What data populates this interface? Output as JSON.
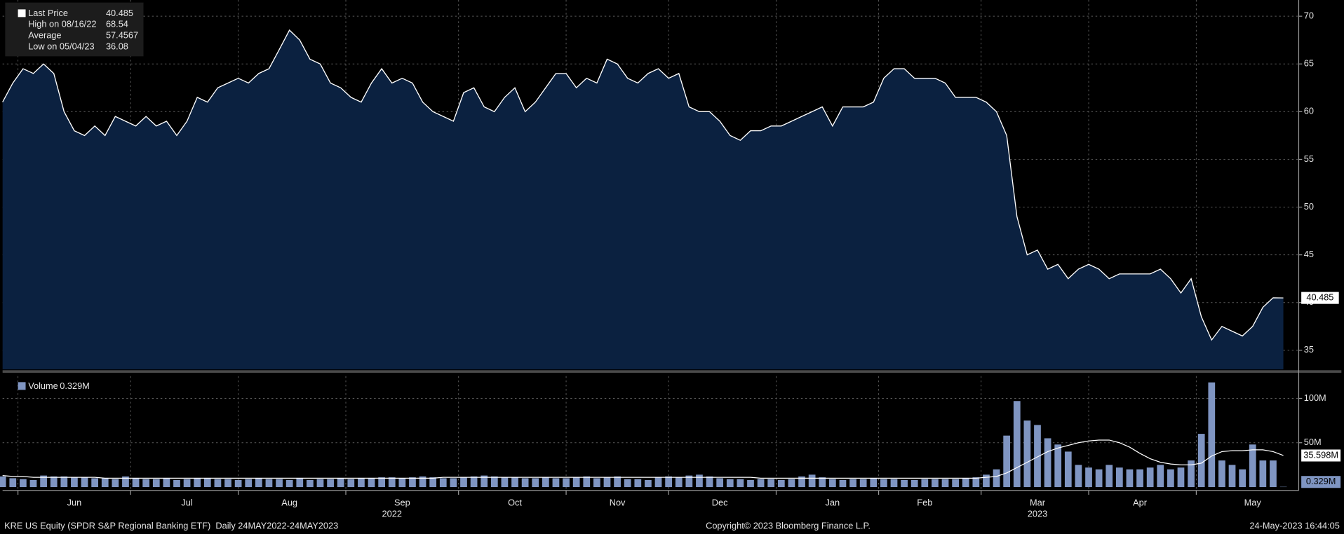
{
  "chart_data": [
    {
      "type": "area",
      "series": [
        {
          "name": "Last Price",
          "color": "#ffffff",
          "fill": "#0b2140",
          "values": [
            61,
            63,
            64.5,
            64,
            65,
            64,
            60,
            58,
            57.5,
            58.5,
            57.5,
            59.5,
            59,
            58.5,
            59.5,
            58.5,
            59,
            57.5,
            59,
            61.5,
            61,
            62.5,
            63,
            63.5,
            63,
            64,
            64.5,
            66.5,
            68.54,
            67.5,
            65.5,
            65,
            63,
            62.5,
            61.5,
            61,
            63,
            64.5,
            63,
            63.5,
            63,
            61,
            60,
            59.5,
            59,
            62,
            62.5,
            60.5,
            60,
            61.5,
            62.5,
            60,
            61,
            62.5,
            64,
            64,
            62.5,
            63.5,
            63,
            65.5,
            65,
            63.5,
            63,
            64,
            64.5,
            63.5,
            64,
            60.5,
            60,
            60,
            59,
            57.5,
            57,
            58,
            58,
            58.5,
            58.5,
            59,
            59.5,
            60,
            60.5,
            58.5,
            60.5,
            60.5,
            60.5,
            61,
            63.5,
            64.5,
            64.5,
            63.5,
            63.5,
            63.5,
            63,
            61.5,
            61.5,
            61.5,
            61,
            60,
            57.5,
            49,
            45,
            45.5,
            43.5,
            44,
            42.5,
            43.5,
            44,
            43.5,
            42.5,
            43,
            43,
            43,
            43,
            43.5,
            42.5,
            41,
            42.5,
            38.5,
            36.08,
            37.5,
            37,
            36.5,
            37.5,
            39.5,
            40.5,
            40.485
          ]
        }
      ],
      "categories": [
        null,
        null,
        null,
        null,
        null,
        null,
        null,
        "Jun",
        null,
        null,
        null,
        null,
        null,
        null,
        null,
        null,
        null,
        null,
        "Jul",
        null,
        null,
        null,
        null,
        null,
        null,
        null,
        null,
        null,
        "Aug",
        null,
        null,
        null,
        null,
        null,
        null,
        null,
        null,
        null,
        null,
        "Sep",
        null,
        null,
        null,
        null,
        null,
        null,
        null,
        null,
        null,
        null,
        "Oct",
        null,
        null,
        null,
        null,
        null,
        null,
        null,
        null,
        null,
        "Nov",
        null,
        null,
        null,
        null,
        null,
        null,
        null,
        null,
        null,
        "Dec",
        null,
        null,
        null,
        null,
        null,
        null,
        null,
        null,
        null,
        null,
        "Jan",
        null,
        null,
        null,
        null,
        null,
        null,
        null,
        null,
        "Feb",
        null,
        null,
        null,
        null,
        null,
        null,
        null,
        null,
        null,
        null,
        "Mar",
        null,
        null,
        null,
        null,
        null,
        null,
        null,
        null,
        null,
        "Apr",
        null,
        null,
        null,
        null,
        null,
        null,
        null,
        null,
        null,
        null,
        "May",
        null,
        null,
        null
      ],
      "years": [
        null,
        null,
        null,
        null,
        null,
        null,
        null,
        null,
        null,
        null,
        null,
        null,
        null,
        null,
        null,
        null,
        null,
        null,
        null,
        null,
        null,
        null,
        null,
        null,
        null,
        null,
        null,
        null,
        null,
        null,
        null,
        null,
        null,
        null,
        null,
        null,
        null,
        null,
        "2022",
        null,
        null,
        null,
        null,
        null,
        null,
        null,
        null,
        null,
        null,
        null,
        null,
        null,
        null,
        null,
        null,
        null,
        null,
        null,
        null,
        null,
        null,
        null,
        null,
        null,
        null,
        null,
        null,
        null,
        null,
        null,
        null,
        null,
        null,
        null,
        null,
        null,
        null,
        null,
        null,
        null,
        null,
        null,
        null,
        null,
        null,
        null,
        null,
        null,
        null,
        null,
        null,
        null,
        null,
        null,
        null,
        null,
        null,
        null,
        null,
        null,
        null,
        "2023",
        null,
        null,
        null,
        null,
        null,
        null,
        null,
        null,
        null,
        null,
        null,
        null,
        null,
        null,
        null,
        null,
        null,
        null,
        null,
        null,
        null,
        null,
        null,
        null
      ],
      "ylim": [
        33,
        71.7
      ],
      "yticks": [
        35,
        40,
        45,
        50,
        55,
        60,
        65,
        70
      ],
      "grid": true,
      "legend": [
        {
          "label": "High on 08/16/22",
          "value": 68.54
        },
        {
          "label": "Average",
          "value": 57.4567
        },
        {
          "label": "Low on 05/04/23",
          "value": 36.08
        }
      ]
    },
    {
      "type": "bar",
      "series": [
        {
          "name": "Volume",
          "color": "#7f95c2",
          "values": [
            12,
            10,
            9,
            8,
            13,
            12,
            12,
            11,
            11,
            10,
            10,
            9,
            12,
            10,
            9,
            9,
            10,
            8,
            9,
            10,
            10,
            9,
            9,
            8,
            9,
            10,
            9,
            9,
            8,
            10,
            8,
            9,
            9,
            10,
            9,
            10,
            10,
            11,
            11,
            10,
            11,
            12,
            11,
            10,
            10,
            11,
            12,
            13,
            12,
            11,
            11,
            10,
            10,
            11,
            10,
            10,
            11,
            12,
            10,
            11,
            12,
            9,
            9,
            8,
            11,
            12,
            11,
            13,
            14,
            12,
            10,
            9,
            9,
            8,
            9,
            9,
            8,
            9,
            12,
            14,
            11,
            9,
            8,
            9,
            9,
            10,
            9,
            9,
            8,
            8,
            9,
            9,
            9,
            9,
            10,
            11,
            14,
            20,
            58,
            97,
            75,
            70,
            55,
            48,
            40,
            25,
            22,
            20,
            25,
            22,
            20,
            20,
            22,
            25,
            20,
            22,
            30,
            60,
            118,
            30,
            25,
            20,
            48,
            30,
            30,
            0.329
          ],
          "last_label": "0.329M"
        },
        {
          "type": "line",
          "color": "#ffffff",
          "values": [
            13,
            12,
            12,
            11,
            11,
            11,
            11,
            11,
            11,
            11,
            10,
            10,
            10,
            10,
            10,
            10,
            10,
            10,
            10,
            10,
            10,
            10,
            10,
            10,
            10,
            10,
            10,
            10,
            10,
            10,
            10,
            10,
            10,
            10,
            10,
            10,
            10,
            10,
            10,
            10,
            10,
            10,
            10,
            11,
            11,
            11,
            11,
            11,
            11,
            11,
            11,
            11,
            11,
            11,
            11,
            11,
            11,
            11,
            11,
            11,
            11,
            11,
            11,
            11,
            11,
            11,
            11,
            11,
            11,
            11,
            11,
            11,
            11,
            11,
            10,
            10,
            10,
            10,
            10,
            10,
            10,
            10,
            10,
            10,
            10,
            10,
            10,
            10,
            10,
            10,
            10,
            10,
            10,
            10,
            10,
            10,
            11,
            12,
            16,
            22,
            28,
            34,
            40,
            44,
            47,
            50,
            52,
            53,
            53,
            50,
            45,
            38,
            32,
            28,
            26,
            25,
            25,
            27,
            35,
            40,
            41,
            41,
            42,
            42,
            40,
            35.598
          ],
          "last_label": "35.598M"
        }
      ],
      "ylim": [
        0,
        125
      ],
      "yticks": [
        {
          "value": 50,
          "label": "50M"
        },
        {
          "value": 100,
          "label": "100M"
        }
      ],
      "grid": true
    }
  ],
  "footer": {
    "left": "KRE US Equity (SPDR S&P Regional Banking ETF)  Daily 24MAY2022-24MAY2023",
    "center": "Copyright© 2023 Bloomberg Finance L.P.",
    "right": "24-May-2023 16:44:05"
  }
}
